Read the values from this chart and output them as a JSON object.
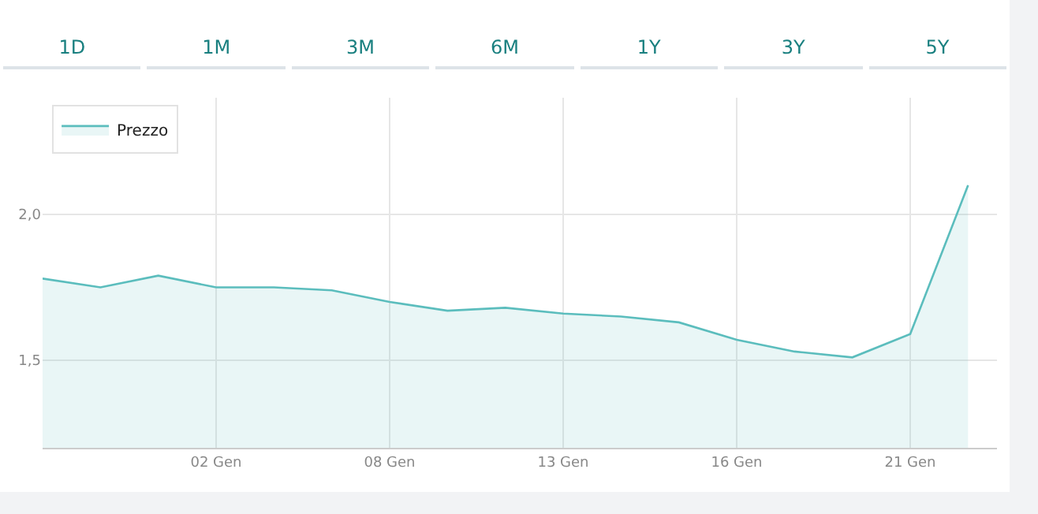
{
  "chart_data": {
    "type": "area",
    "categories": [
      null,
      null,
      null,
      "02 Gen",
      null,
      null,
      "08 Gen",
      null,
      null,
      "13 Gen",
      null,
      null,
      "16 Gen",
      null,
      null,
      "21 Gen",
      null
    ],
    "series": [
      {
        "name": "Prezzo",
        "color": "#5bbdbd",
        "values": [
          1.78,
          1.75,
          1.79,
          1.75,
          1.75,
          1.74,
          1.7,
          1.67,
          1.68,
          1.66,
          1.65,
          1.63,
          1.57,
          1.53,
          1.51,
          1.59,
          2.1
        ]
      }
    ],
    "ylim": [
      1.2,
      2.4
    ],
    "yticks": [
      {
        "value": 1.5,
        "label": "1,5"
      },
      {
        "value": 2,
        "label": "2,0"
      }
    ],
    "grid": true,
    "legend": "top left",
    "marker": "none",
    "annotations": [
      "1D",
      "1M",
      "3M",
      "6M",
      "1Y",
      "3Y",
      "5Y"
    ]
  }
}
